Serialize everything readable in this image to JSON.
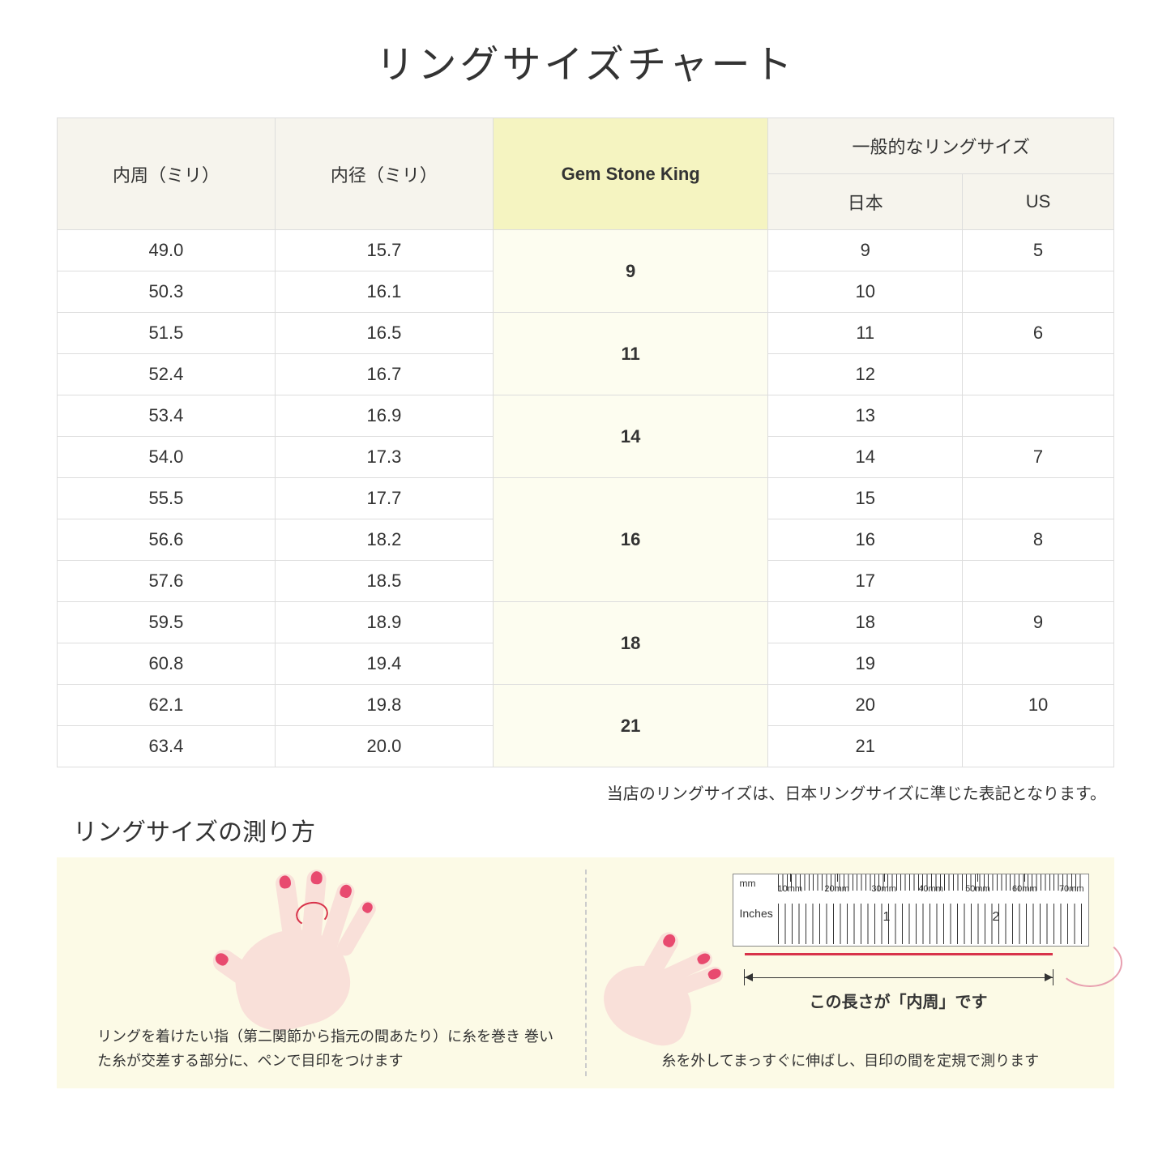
{
  "title": "リングサイズチャート",
  "table": {
    "headers": {
      "col1": "内周（ミリ）",
      "col2": "内径（ミリ）",
      "col3": "Gem Stone King",
      "col4_group": "一般的なリングサイズ",
      "col4a": "日本",
      "col4b": "US"
    },
    "groups": [
      {
        "gsk": "9",
        "rows": [
          {
            "c": "49.0",
            "d": "15.7",
            "jp": "9",
            "us": "5"
          },
          {
            "c": "50.3",
            "d": "16.1",
            "jp": "10",
            "us": ""
          }
        ]
      },
      {
        "gsk": "11",
        "rows": [
          {
            "c": "51.5",
            "d": "16.5",
            "jp": "11",
            "us": "6"
          },
          {
            "c": "52.4",
            "d": "16.7",
            "jp": "12",
            "us": ""
          }
        ]
      },
      {
        "gsk": "14",
        "rows": [
          {
            "c": "53.4",
            "d": "16.9",
            "jp": "13",
            "us": ""
          },
          {
            "c": "54.0",
            "d": "17.3",
            "jp": "14",
            "us": "7"
          }
        ]
      },
      {
        "gsk": "16",
        "rows": [
          {
            "c": "55.5",
            "d": "17.7",
            "jp": "15",
            "us": ""
          },
          {
            "c": "56.6",
            "d": "18.2",
            "jp": "16",
            "us": "8"
          },
          {
            "c": "57.6",
            "d": "18.5",
            "jp": "17",
            "us": ""
          }
        ]
      },
      {
        "gsk": "18",
        "rows": [
          {
            "c": "59.5",
            "d": "18.9",
            "jp": "18",
            "us": "9"
          },
          {
            "c": "60.8",
            "d": "19.4",
            "jp": "19",
            "us": ""
          }
        ]
      },
      {
        "gsk": "21",
        "rows": [
          {
            "c": "62.1",
            "d": "19.8",
            "jp": "20",
            "us": "10"
          },
          {
            "c": "63.4",
            "d": "20.0",
            "jp": "21",
            "us": ""
          }
        ]
      }
    ]
  },
  "note": "当店のリングサイズは、日本リングサイズに準じた表記となります。",
  "howto_title": "リングサイズの測り方",
  "ruler": {
    "mm_label": "mm",
    "in_label": "Inches",
    "mm_ticks": [
      "10mm",
      "20mm",
      "30mm",
      "40mm",
      "50mm",
      "60mm",
      "70mm"
    ],
    "in1": "1",
    "in2": "2"
  },
  "dim_label": "この長さが「内周」です",
  "caption_left": "リングを着けたい指（第二関節から指元の間あたり）に糸を巻き\n巻いた糸が交差する部分に、ペンで目印をつけます",
  "caption_right": "糸を外してまっすぐに伸ばし、目印の間を定規で測ります"
}
